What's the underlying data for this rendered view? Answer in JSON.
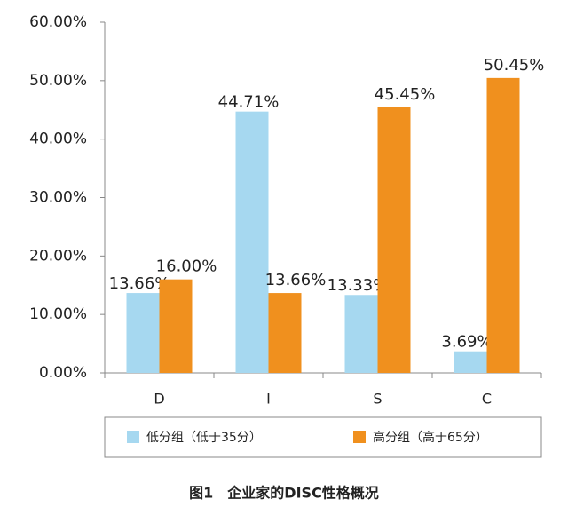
{
  "chart_data": {
    "type": "bar",
    "title": "图1　企业家的DISC性格概况",
    "categories": [
      "D",
      "I",
      "S",
      "C"
    ],
    "series": [
      {
        "name": "低分组（低于35分）",
        "color": "#a6d8f0",
        "values": [
          13.66,
          44.71,
          13.33,
          3.69
        ],
        "value_labels": [
          "13.66%",
          "44.71%",
          "13.33%",
          "3.69%"
        ]
      },
      {
        "name": "高分组（高于65分）",
        "color": "#f0901e",
        "values": [
          16.0,
          13.66,
          45.45,
          50.45
        ],
        "value_labels": [
          "16.00%",
          "13.66%",
          "45.45%",
          "50.45%"
        ]
      }
    ],
    "ylim": [
      0,
      60
    ],
    "yticks": [
      {
        "value": 0,
        "label": "0.00%"
      },
      {
        "value": 10,
        "label": "10.00%"
      },
      {
        "value": 20,
        "label": "20.00%"
      },
      {
        "value": 30,
        "label": "30.00%"
      },
      {
        "value": 40,
        "label": "40.00%"
      },
      {
        "value": 50,
        "label": "50.00%"
      },
      {
        "value": 60,
        "label": "60.00%"
      }
    ],
    "grid": false,
    "legend": "bottom"
  }
}
